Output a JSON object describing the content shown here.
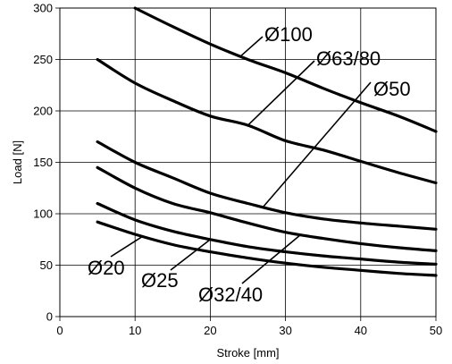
{
  "chart_data": {
    "type": "line",
    "xlabel": "Stroke [mm]",
    "ylabel": "Load [N]",
    "xlim": [
      0,
      50
    ],
    "ylim": [
      0,
      300
    ],
    "xticks": [
      0,
      10,
      20,
      30,
      40,
      50
    ],
    "yticks": [
      0,
      50,
      100,
      150,
      200,
      250,
      300
    ],
    "grid": true,
    "series": [
      {
        "name": "Ø100",
        "x": [
          10,
          15,
          20,
          25,
          30,
          35,
          40,
          45,
          50
        ],
        "values": [
          300,
          282,
          265,
          250,
          237,
          222,
          208,
          195,
          180
        ]
      },
      {
        "name": "Ø63/80",
        "x": [
          5,
          10,
          15,
          20,
          25,
          30,
          35,
          40,
          45,
          50
        ],
        "values": [
          250,
          227,
          210,
          195,
          186,
          171,
          162,
          151,
          140,
          130
        ]
      },
      {
        "name": "Ø50",
        "x": [
          5,
          10,
          15,
          20,
          25,
          30,
          35,
          40,
          45,
          50
        ],
        "values": [
          170,
          150,
          135,
          120,
          110,
          101,
          95,
          91,
          88,
          85
        ]
      },
      {
        "name": "Ø32/40",
        "x": [
          5,
          10,
          15,
          20,
          25,
          30,
          35,
          40,
          45,
          50
        ],
        "values": [
          145,
          125,
          110,
          101,
          91,
          82,
          76,
          71,
          67,
          64
        ]
      },
      {
        "name": "Ø25",
        "x": [
          5,
          10,
          15,
          20,
          25,
          30,
          35,
          40,
          45,
          50
        ],
        "values": [
          110,
          94,
          83,
          75,
          68,
          63,
          59,
          56,
          53,
          51
        ]
      },
      {
        "name": "Ø20",
        "x": [
          5,
          10,
          15,
          20,
          25,
          30,
          35,
          40,
          45,
          50
        ],
        "values": [
          92,
          80,
          70,
          63,
          57,
          52,
          48,
          45,
          42,
          40
        ]
      }
    ]
  }
}
